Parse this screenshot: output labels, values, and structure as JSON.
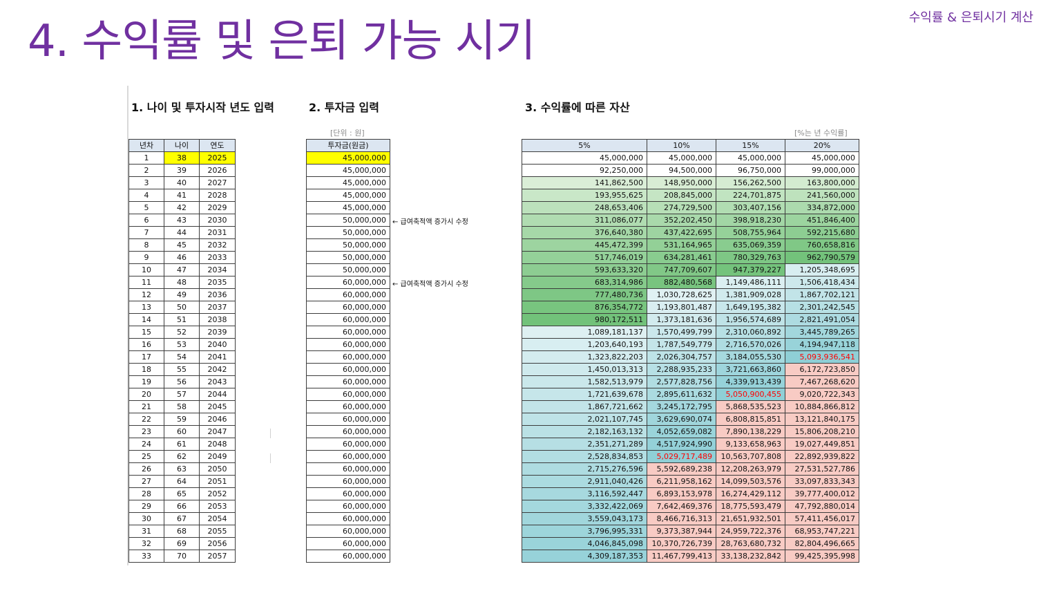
{
  "header": {
    "corner_label": "수익률 & 은퇴시기 계산",
    "title": "4. 수익률 및 은퇴 가능 시기"
  },
  "sections": {
    "s1": "1. 나이 및 투자시작 년도 입력",
    "s2": "2. 투자금 입력",
    "s3": "3. 수익률에 따른 자산"
  },
  "notes": {
    "unit": "[단위 : 원]",
    "rate": "[%는 년 수익률]"
  },
  "table1": {
    "headers": [
      "년차",
      "나이",
      "연도"
    ],
    "rows": [
      [
        "1",
        "38",
        "2025"
      ],
      [
        "2",
        "39",
        "2026"
      ],
      [
        "3",
        "40",
        "2027"
      ],
      [
        "4",
        "41",
        "2028"
      ],
      [
        "5",
        "42",
        "2029"
      ],
      [
        "6",
        "43",
        "2030"
      ],
      [
        "7",
        "44",
        "2031"
      ],
      [
        "8",
        "45",
        "2032"
      ],
      [
        "9",
        "46",
        "2033"
      ],
      [
        "10",
        "47",
        "2034"
      ],
      [
        "11",
        "48",
        "2035"
      ],
      [
        "12",
        "49",
        "2036"
      ],
      [
        "13",
        "50",
        "2037"
      ],
      [
        "14",
        "51",
        "2038"
      ],
      [
        "15",
        "52",
        "2039"
      ],
      [
        "16",
        "53",
        "2040"
      ],
      [
        "17",
        "54",
        "2041"
      ],
      [
        "18",
        "55",
        "2042"
      ],
      [
        "19",
        "56",
        "2043"
      ],
      [
        "20",
        "57",
        "2044"
      ],
      [
        "21",
        "58",
        "2045"
      ],
      [
        "22",
        "59",
        "2046"
      ],
      [
        "23",
        "60",
        "2047"
      ],
      [
        "24",
        "61",
        "2048"
      ],
      [
        "25",
        "62",
        "2049"
      ],
      [
        "26",
        "63",
        "2050"
      ],
      [
        "27",
        "64",
        "2051"
      ],
      [
        "28",
        "65",
        "2052"
      ],
      [
        "29",
        "66",
        "2053"
      ],
      [
        "30",
        "67",
        "2054"
      ],
      [
        "31",
        "68",
        "2055"
      ],
      [
        "32",
        "69",
        "2056"
      ],
      [
        "33",
        "70",
        "2057"
      ]
    ]
  },
  "table2": {
    "header": "투자금(원금)",
    "values": [
      "45,000,000",
      "45,000,000",
      "45,000,000",
      "45,000,000",
      "45,000,000",
      "50,000,000",
      "50,000,000",
      "50,000,000",
      "50,000,000",
      "50,000,000",
      "60,000,000",
      "60,000,000",
      "60,000,000",
      "60,000,000",
      "60,000,000",
      "60,000,000",
      "60,000,000",
      "60,000,000",
      "60,000,000",
      "60,000,000",
      "60,000,000",
      "60,000,000",
      "60,000,000",
      "60,000,000",
      "60,000,000",
      "60,000,000",
      "60,000,000",
      "60,000,000",
      "60,000,000",
      "60,000,000",
      "60,000,000",
      "60,000,000",
      "60,000,000"
    ],
    "annotation": "← 급여축적액 증가시 수정"
  },
  "table3": {
    "headers": [
      "5%",
      "10%",
      "15%",
      "20%"
    ],
    "rows": [
      [
        "45,000,000",
        "45,000,000",
        "45,000,000",
        "45,000,000"
      ],
      [
        "92,250,000",
        "94,500,000",
        "96,750,000",
        "99,000,000"
      ],
      [
        "141,862,500",
        "148,950,000",
        "156,262,500",
        "163,800,000"
      ],
      [
        "193,955,625",
        "208,845,000",
        "224,701,875",
        "241,560,000"
      ],
      [
        "248,653,406",
        "274,729,500",
        "303,407,156",
        "334,872,000"
      ],
      [
        "311,086,077",
        "352,202,450",
        "398,918,230",
        "451,846,400"
      ],
      [
        "376,640,380",
        "437,422,695",
        "508,755,964",
        "592,215,680"
      ],
      [
        "445,472,399",
        "531,164,965",
        "635,069,359",
        "760,658,816"
      ],
      [
        "517,746,019",
        "634,281,461",
        "780,329,763",
        "962,790,579"
      ],
      [
        "593,633,320",
        "747,709,607",
        "947,379,227",
        "1,205,348,695"
      ],
      [
        "683,314,986",
        "882,480,568",
        "1,149,486,111",
        "1,506,418,434"
      ],
      [
        "777,480,736",
        "1,030,728,625",
        "1,381,909,028",
        "1,867,702,121"
      ],
      [
        "876,354,772",
        "1,193,801,487",
        "1,649,195,382",
        "2,301,242,545"
      ],
      [
        "980,172,511",
        "1,373,181,636",
        "1,956,574,689",
        "2,821,491,054"
      ],
      [
        "1,089,181,137",
        "1,570,499,799",
        "2,310,060,892",
        "3,445,789,265"
      ],
      [
        "1,203,640,193",
        "1,787,549,779",
        "2,716,570,026",
        "4,194,947,118"
      ],
      [
        "1,323,822,203",
        "2,026,304,757",
        "3,184,055,530",
        "5,093,936,541"
      ],
      [
        "1,450,013,313",
        "2,288,935,233",
        "3,721,663,860",
        "6,172,723,850"
      ],
      [
        "1,582,513,979",
        "2,577,828,756",
        "4,339,913,439",
        "7,467,268,620"
      ],
      [
        "1,721,639,678",
        "2,895,611,632",
        "5,050,900,455",
        "9,020,722,343"
      ],
      [
        "1,867,721,662",
        "3,245,172,795",
        "5,868,535,523",
        "10,884,866,812"
      ],
      [
        "2,021,107,745",
        "3,629,690,074",
        "6,808,815,851",
        "13,121,840,175"
      ],
      [
        "2,182,163,132",
        "4,052,659,082",
        "7,890,138,229",
        "15,806,208,210"
      ],
      [
        "2,351,271,289",
        "4,517,924,990",
        "9,133,658,963",
        "19,027,449,851"
      ],
      [
        "2,528,834,853",
        "5,029,717,489",
        "10,563,707,808",
        "22,892,939,822"
      ],
      [
        "2,715,276,596",
        "5,592,689,238",
        "12,208,263,979",
        "27,531,527,786"
      ],
      [
        "2,911,040,426",
        "6,211,958,162",
        "14,099,503,576",
        "33,097,833,343"
      ],
      [
        "3,116,592,447",
        "6,893,153,978",
        "16,274,429,112",
        "39,777,400,012"
      ],
      [
        "3,332,422,069",
        "7,642,469,376",
        "18,775,593,479",
        "47,792,880,014"
      ],
      [
        "3,559,043,173",
        "8,466,716,313",
        "21,651,932,501",
        "57,411,456,017"
      ],
      [
        "3,796,995,331",
        "9,373,387,944",
        "24,959,722,376",
        "68,953,747,221"
      ],
      [
        "4,046,845,098",
        "10,370,726,739",
        "28,763,680,732",
        "82,804,496,665"
      ],
      [
        "4,309,187,353",
        "11,467,799,413",
        "33,138,232,842",
        "99,425,395,998"
      ]
    ],
    "threshold": 5000000000,
    "colors": {
      "header": "#dce6f1",
      "input_highlight": "#ffff00",
      "text_over_threshold": "#ff0000",
      "above_threshold_pink": "#f8cbc4"
    }
  }
}
